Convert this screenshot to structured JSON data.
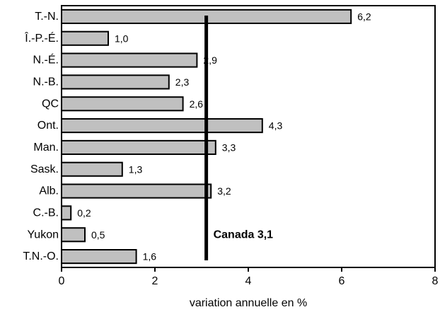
{
  "chart_data": {
    "type": "bar",
    "orientation": "horizontal",
    "categories": [
      "T.-N.",
      "Î.-P.-É.",
      "N.-É.",
      "N.-B.",
      "QC",
      "Ont.",
      "Man.",
      "Sask.",
      "Alb.",
      "C.-B.",
      "Yukon",
      "T.N.-O."
    ],
    "values": [
      6.2,
      1.0,
      2.9,
      2.3,
      2.6,
      4.3,
      3.3,
      1.3,
      3.2,
      0.2,
      0.5,
      1.6
    ],
    "value_labels": [
      "6,2",
      "1,0",
      "2,9",
      "2,3",
      "2,6",
      "4,3",
      "3,3",
      "1,3",
      "3,2",
      "0,2",
      "0,5",
      "1,6"
    ],
    "xlabel": "variation annuelle en %",
    "ylabel": "",
    "xlim": [
      0,
      8
    ],
    "x_ticks": [
      0,
      2,
      4,
      6,
      8
    ],
    "x_tick_labels": [
      "0",
      "2",
      "4",
      "6",
      "8"
    ],
    "grid": false,
    "legend": "none",
    "reference_line": {
      "value": 3.1,
      "label": "Canada 3,1"
    },
    "colors": {
      "bar_fill": "#c0c0c0",
      "bar_stroke": "#000000",
      "reference_line": "#000000"
    }
  }
}
